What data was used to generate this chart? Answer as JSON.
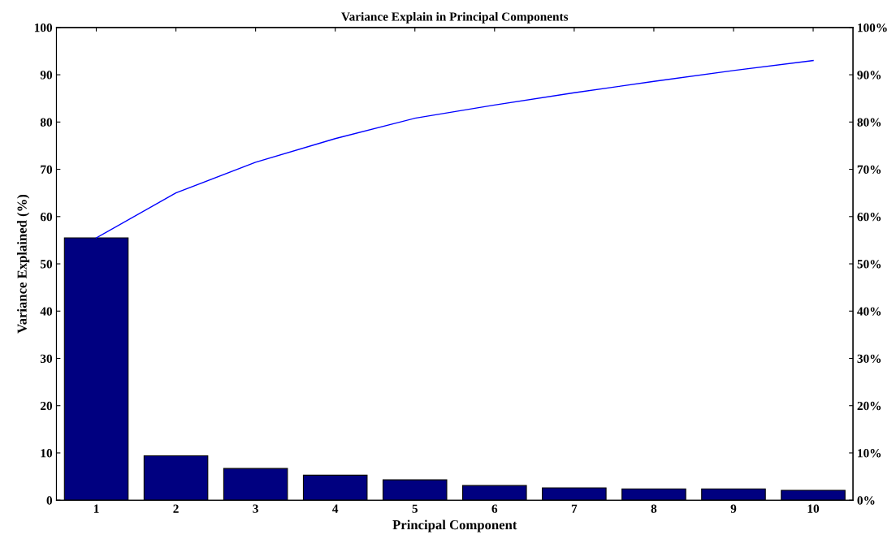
{
  "chart_data": {
    "type": "bar",
    "title": "Variance Explain in Principal Components",
    "xlabel": "Principal Component",
    "ylabel": "Variance Explained (%)",
    "categories": [
      "1",
      "2",
      "3",
      "4",
      "5",
      "6",
      "7",
      "8",
      "9",
      "10"
    ],
    "series": [
      {
        "color": "#000080",
        "values": [
          55.5,
          9.4,
          6.7,
          5.3,
          4.3,
          3.1,
          2.6,
          2.4,
          2.4,
          2.1
        ]
      },
      {
        "type": "line",
        "color": "#0000ff",
        "values": [
          55.5,
          65.0,
          71.5,
          76.5,
          80.8,
          83.6,
          86.2,
          88.6,
          90.9,
          93.0
        ]
      }
    ],
    "ylim": [
      0,
      100
    ],
    "yticks": [
      0,
      10,
      20,
      30,
      40,
      50,
      60,
      70,
      80,
      90,
      100
    ],
    "y2lim": [
      0,
      100
    ],
    "y2ticks": [
      {
        "value": 0,
        "label": "0%"
      },
      {
        "value": 10,
        "label": "10%"
      },
      {
        "value": 20,
        "label": "20%"
      },
      {
        "value": 30,
        "label": "30%"
      },
      {
        "value": 40,
        "label": "40%"
      },
      {
        "value": 50,
        "label": "50%"
      },
      {
        "value": 60,
        "label": "60%"
      },
      {
        "value": 70,
        "label": "70%"
      },
      {
        "value": 80,
        "label": "80%"
      },
      {
        "value": 90,
        "label": "90%"
      },
      {
        "value": 100,
        "label": "100%"
      }
    ],
    "grid": false,
    "legend": false
  }
}
